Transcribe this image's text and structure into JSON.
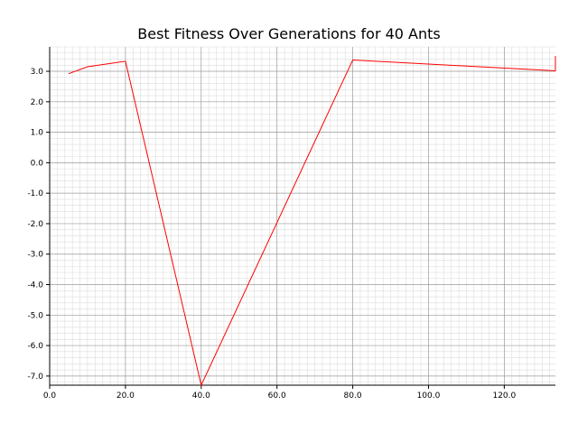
{
  "chart_data": {
    "type": "line",
    "title": "Best Fitness Over Generations for 40 Ants",
    "xlabel": "",
    "ylabel": "",
    "xlim": [
      0,
      133.5
    ],
    "ylim": [
      -7.3,
      3.8
    ],
    "grid": true,
    "x_major_ticks": [
      0.0,
      20.0,
      40.0,
      60.0,
      80.0,
      100.0,
      120.0
    ],
    "x_tick_labels": [
      "0.0",
      "20.0",
      "40.0",
      "60.0",
      "80.0",
      "100.0",
      "120.0"
    ],
    "y_major_ticks": [
      3.0,
      2.0,
      1.0,
      0.0,
      -1.0,
      -2.0,
      -3.0,
      -4.0,
      -5.0,
      -6.0,
      -7.0
    ],
    "y_tick_labels": [
      "3.0",
      "2.0",
      "1.0",
      "0.0",
      "-1.0",
      "-2.0",
      "-3.0",
      "-4.0",
      "-5.0",
      "-6.0",
      "-7.0"
    ],
    "series": [
      {
        "color": "#ff0000",
        "x": [
          5,
          10,
          20,
          40,
          80,
          133,
          133.5,
          133.5
        ],
        "y": [
          2.92,
          3.15,
          3.33,
          -7.3,
          3.37,
          3.02,
          3.02,
          3.5
        ]
      }
    ]
  }
}
